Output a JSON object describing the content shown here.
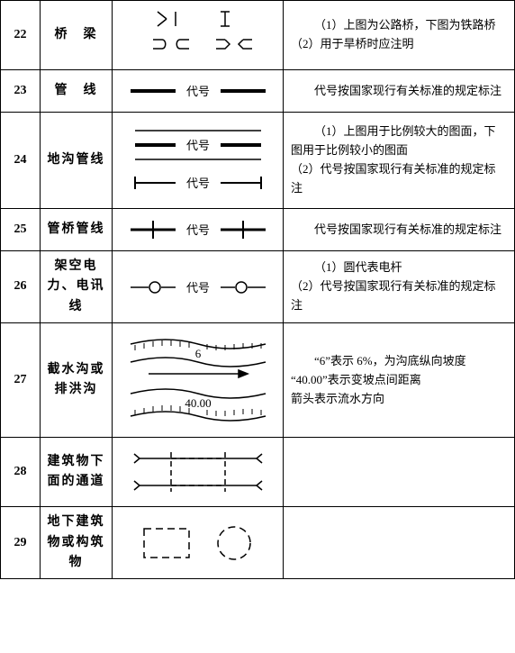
{
  "rows": [
    {
      "num": "22",
      "name": "桥　梁",
      "desc": "（1）上图为公路桥，下图为铁路桥\n（2）用于旱桥时应注明"
    },
    {
      "num": "23",
      "name": "管　线",
      "label": "代号",
      "desc": "代号按国家现行有关标准的规定标注"
    },
    {
      "num": "24",
      "name": "地沟管线",
      "label": "代号",
      "desc": "（1）上图用于比例较大的图面，下图用于比例较小的图面\n（2）代号按国家现行有关标准的规定标注"
    },
    {
      "num": "25",
      "name": "管桥管线",
      "label": "代号",
      "desc": "代号按国家现行有关标准的规定标注"
    },
    {
      "num": "26",
      "name": "架空电力、电讯线",
      "label": "代号",
      "desc": "（1）圆代表电杆\n（2）代号按国家现行有关标准的规定标注"
    },
    {
      "num": "27",
      "name": "截水沟或排洪沟",
      "val1": "6",
      "val2": "40.00",
      "desc": "“6”表示 6%，为沟底纵向坡度\n“40.00”表示变坡点间距离\n箭头表示流水方向"
    },
    {
      "num": "28",
      "name": "建筑物下面的通道",
      "desc": ""
    },
    {
      "num": "29",
      "name": "地下建筑物或构筑物",
      "desc": ""
    }
  ]
}
